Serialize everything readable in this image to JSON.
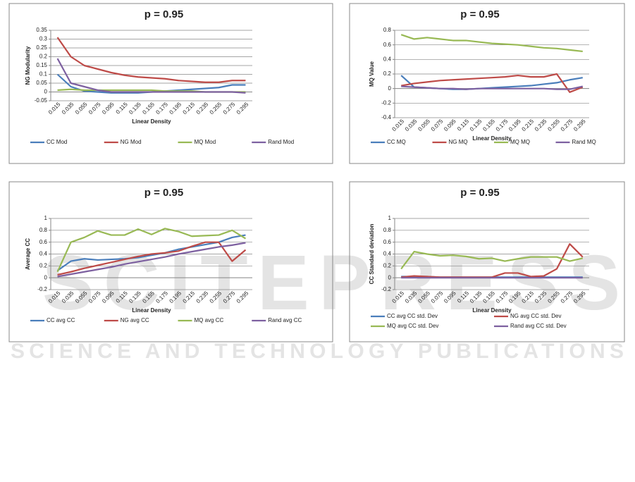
{
  "chart_data": [
    {
      "type": "line",
      "title": "p = 0.95",
      "y_label": "NG Modularity",
      "x_label": "Linear Density",
      "categories": [
        "0.015",
        "0.035",
        "0.055",
        "0.075",
        "0.095",
        "0.115",
        "0.135",
        "0.155",
        "0.175",
        "0.195",
        "0.215",
        "0.235",
        "0.255",
        "0.275",
        "0.295"
      ],
      "ylim": [
        -0.05,
        0.35
      ],
      "yticks": [
        -0.05,
        0,
        0.05,
        0.1,
        0.15,
        0.2,
        0.25,
        0.3,
        0.35
      ],
      "grid": true,
      "series": [
        {
          "name": "CC Mod",
          "color": "#4a7ebb",
          "values": [
            0.1,
            0.03,
            0.005,
            0,
            -0.005,
            -0.005,
            -0.005,
            0,
            0.005,
            0.01,
            0.015,
            0.02,
            0.025,
            0.04,
            0.04
          ]
        },
        {
          "name": "NG Mod",
          "color": "#be4b48",
          "values": [
            0.31,
            0.2,
            0.15,
            0.13,
            0.11,
            0.095,
            0.085,
            0.08,
            0.075,
            0.065,
            0.06,
            0.055,
            0.055,
            0.065,
            0.065
          ]
        },
        {
          "name": "MQ Mod",
          "color": "#98b954",
          "values": [
            0.01,
            0.015,
            0.01,
            0.01,
            0.01,
            0.01,
            0.01,
            0.01,
            0.005,
            0.005,
            0.005,
            0,
            0,
            0,
            0
          ]
        },
        {
          "name": "Rand Mod",
          "color": "#7d60a0",
          "values": [
            0.19,
            0.05,
            0.03,
            0.01,
            0,
            0,
            0,
            0,
            0,
            0,
            0,
            0,
            0,
            0,
            -0.005
          ]
        }
      ]
    },
    {
      "type": "line",
      "title": "p = 0.95",
      "y_label": "MQ Value",
      "x_label": "Linear Density",
      "categories": [
        "0.015",
        "0.035",
        "0.055",
        "0.075",
        "0.095",
        "0.115",
        "0.135",
        "0.155",
        "0.175",
        "0.195",
        "0.215",
        "0.235",
        "0.255",
        "0.275",
        "0.295"
      ],
      "ylim": [
        -0.4,
        0.8
      ],
      "yticks": [
        -0.4,
        -0.2,
        0,
        0.2,
        0.4,
        0.6,
        0.8
      ],
      "grid": true,
      "series": [
        {
          "name": "CC MQ",
          "color": "#4a7ebb",
          "values": [
            0.18,
            0.02,
            0.01,
            0,
            -0.01,
            -0.01,
            0,
            0.01,
            0.02,
            0.03,
            0.04,
            0.06,
            0.08,
            0.12,
            0.15
          ]
        },
        {
          "name": "NG MQ",
          "color": "#be4b48",
          "values": [
            0.04,
            0.07,
            0.09,
            0.11,
            0.12,
            0.13,
            0.14,
            0.15,
            0.16,
            0.18,
            0.16,
            0.16,
            0.2,
            -0.05,
            0.02
          ]
        },
        {
          "name": "MQ MQ",
          "color": "#98b954",
          "values": [
            0.74,
            0.68,
            0.7,
            0.68,
            0.66,
            0.66,
            0.64,
            0.62,
            0.61,
            0.6,
            0.58,
            0.56,
            0.55,
            0.53,
            0.51
          ]
        },
        {
          "name": "Rand MQ",
          "color": "#7d60a0",
          "values": [
            0.03,
            0.02,
            0.01,
            0,
            0,
            -0.01,
            0,
            0,
            0,
            0,
            0,
            0,
            -0.01,
            -0.01,
            0.03
          ]
        }
      ]
    },
    {
      "type": "line",
      "title": "p = 0.95",
      "y_label": "Average CC",
      "x_label": "Linear Density",
      "categories": [
        "0.015",
        "0.035",
        "0.055",
        "0.075",
        "0.095",
        "0.115",
        "0.135",
        "0.155",
        "0.175",
        "0.195",
        "0.215",
        "0.235",
        "0.255",
        "0.275",
        "0.295"
      ],
      "ylim": [
        -0.2,
        1
      ],
      "yticks": [
        -0.2,
        0,
        0.2,
        0.4,
        0.6,
        0.8,
        1
      ],
      "grid": true,
      "series": [
        {
          "name": "CC avg CC",
          "color": "#4a7ebb",
          "values": [
            0.12,
            0.28,
            0.32,
            0.3,
            0.31,
            0.32,
            0.34,
            0.38,
            0.42,
            0.48,
            0.52,
            0.56,
            0.6,
            0.68,
            0.72
          ]
        },
        {
          "name": "NG avg CC",
          "color": "#be4b48",
          "values": [
            0.05,
            0.1,
            0.16,
            0.21,
            0.26,
            0.31,
            0.36,
            0.4,
            0.42,
            0.45,
            0.53,
            0.6,
            0.6,
            0.28,
            0.47
          ]
        },
        {
          "name": "MQ avg CC",
          "color": "#98b954",
          "values": [
            0.1,
            0.6,
            0.68,
            0.79,
            0.72,
            0.72,
            0.82,
            0.73,
            0.83,
            0.78,
            0.7,
            0.71,
            0.72,
            0.8,
            0.66
          ]
        },
        {
          "name": "Rand avg CC",
          "color": "#7d60a0",
          "values": [
            0.02,
            0.06,
            0.1,
            0.14,
            0.18,
            0.23,
            0.27,
            0.31,
            0.35,
            0.4,
            0.44,
            0.48,
            0.52,
            0.55,
            0.59
          ]
        }
      ]
    },
    {
      "type": "line",
      "title": "p = 0.95",
      "y_label": "CC Standard deviation",
      "x_label": "Linear Density",
      "categories": [
        "0.015",
        "0.035",
        "0.055",
        "0.075",
        "0.095",
        "0.115",
        "0.135",
        "0.155",
        "0.175",
        "0.195",
        "0.215",
        "0.235",
        "0.255",
        "0.275",
        "0.295"
      ],
      "ylim": [
        -0.2,
        1
      ],
      "yticks": [
        -0.2,
        0,
        0.2,
        0.4,
        0.6,
        0.8,
        1
      ],
      "grid": true,
      "series": [
        {
          "name": "CC avg CC std. Dev",
          "color": "#4a7ebb",
          "values": [
            0.02,
            0.02,
            0.02,
            0.01,
            0.01,
            0.01,
            0.01,
            0.01,
            0.01,
            0.01,
            0.01,
            0.01,
            0.01,
            0.01,
            0.01
          ]
        },
        {
          "name": "NG  avg CC std. Dev",
          "color": "#be4b48",
          "values": [
            0.01,
            0.03,
            0.02,
            0.01,
            0.01,
            0.01,
            0.01,
            0.01,
            0.08,
            0.08,
            0.02,
            0.03,
            0.15,
            0.57,
            0.35
          ]
        },
        {
          "name": "MQ  avg CC std. Dev",
          "color": "#98b954",
          "values": [
            0.15,
            0.44,
            0.4,
            0.37,
            0.38,
            0.36,
            0.32,
            0.33,
            0.28,
            0.32,
            0.35,
            0.35,
            0.35,
            0.28,
            0.33
          ]
        },
        {
          "name": "Rand  avg CC std. Dev",
          "color": "#7d60a0",
          "values": [
            0,
            0,
            0,
            0,
            0,
            0,
            0,
            0,
            0,
            0,
            0,
            0,
            0,
            0,
            0
          ]
        }
      ]
    }
  ],
  "watermark": {
    "title": "SCITEPRESS",
    "subtitle": "SCIENCE AND TECHNOLOGY PUBLICATIONS"
  }
}
